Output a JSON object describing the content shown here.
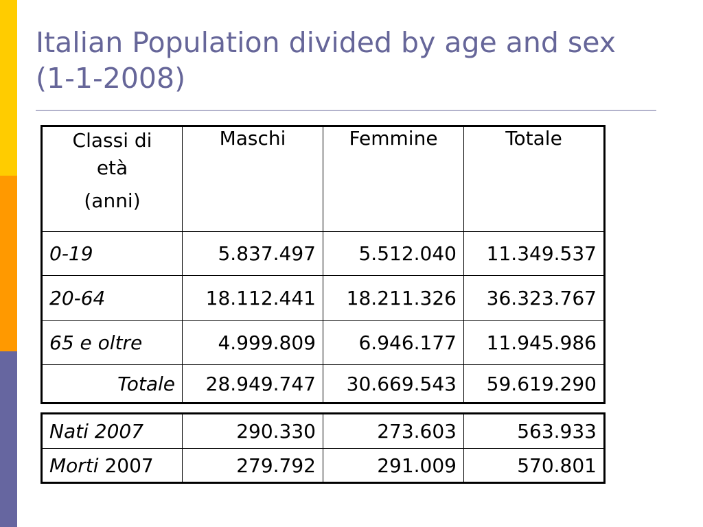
{
  "slide": {
    "title": "Italian Population divided by age and sex (1-1-2008)",
    "accent_colors": {
      "yellow": "#ffcc00",
      "orange": "#ff9900",
      "purple": "#6666a0",
      "title": "#666699"
    }
  },
  "main_table": {
    "headers": {
      "age_line1": "Classi di",
      "age_line2": "età",
      "age_line3": "(anni)",
      "males": "Maschi",
      "females": "Femmine",
      "total": "Totale"
    },
    "rows": [
      {
        "label": "0-19",
        "males": "5.837.497",
        "females": "5.512.040",
        "total": "11.349.537"
      },
      {
        "label": "20-64",
        "males": "18.112.441",
        "females": "18.211.326",
        "total": "36.323.767"
      },
      {
        "label": "65 e oltre",
        "males": "4.999.809",
        "females": "6.946.177",
        "total": "11.945.986"
      },
      {
        "label": "Totale",
        "males": "28.949.747",
        "females": "30.669.543",
        "total": "59.619.290"
      }
    ]
  },
  "events_table": {
    "rows": [
      {
        "label": "Nati 2007",
        "males": "290.330",
        "females": "273.603",
        "total": "563.933"
      },
      {
        "label_italic": "Morti",
        "label_plain": "2007",
        "males": "279.792",
        "females": "291.009",
        "total": "570.801"
      }
    ]
  }
}
